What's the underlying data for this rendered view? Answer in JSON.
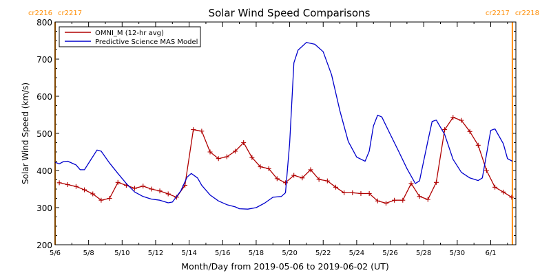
{
  "chart_data": {
    "type": "line",
    "title": "Solar Wind Speed Comparisons",
    "xlabel": "Month/Day from 2019-05-06 to 2019-06-02 (UT)",
    "ylabel": "Solar Wind Speed (km/s)",
    "xlim": [
      "2019-05-06T00:00",
      "2019-06-02T12:00"
    ],
    "ylim": [
      200,
      800
    ],
    "x_ticks": [
      "5/6",
      "5/8",
      "5/10",
      "5/12",
      "5/14",
      "5/16",
      "5/18",
      "5/20",
      "5/22",
      "5/24",
      "5/26",
      "5/28",
      "5/30",
      "6/1"
    ],
    "y_ticks": [
      200,
      300,
      400,
      500,
      600,
      700,
      800
    ],
    "legend": {
      "placement": "top-left"
    },
    "rotation_markers": [
      {
        "x": "2019-05-06T00:00",
        "label_left": "cr2216",
        "label_right": "cr2217",
        "color": "#ff8c00"
      },
      {
        "x": "2019-06-02T07:00",
        "label_left": "cr2217",
        "label_right": "cr2218",
        "color": "#ff8c00"
      }
    ],
    "series": [
      {
        "name": "OMNI_M (12-hr avg)",
        "color": "#b00000",
        "marker": "plus",
        "points": [
          [
            "2019-05-06T06:00",
            367
          ],
          [
            "2019-05-06T18:00",
            362
          ],
          [
            "2019-05-07T06:00",
            357
          ],
          [
            "2019-05-07T18:00",
            348
          ],
          [
            "2019-05-08T06:00",
            337
          ],
          [
            "2019-05-08T18:00",
            320
          ],
          [
            "2019-05-09T06:00",
            325
          ],
          [
            "2019-05-09T18:00",
            368
          ],
          [
            "2019-05-10T06:00",
            360
          ],
          [
            "2019-05-10T18:00",
            352
          ],
          [
            "2019-05-11T06:00",
            358
          ],
          [
            "2019-05-11T18:00",
            350
          ],
          [
            "2019-05-12T06:00",
            345
          ],
          [
            "2019-05-12T18:00",
            337
          ],
          [
            "2019-05-13T06:00",
            328
          ],
          [
            "2019-05-13T18:00",
            360
          ],
          [
            "2019-05-14T06:00",
            510
          ],
          [
            "2019-05-14T18:00",
            506
          ],
          [
            "2019-05-15T06:00",
            450
          ],
          [
            "2019-05-15T18:00",
            432
          ],
          [
            "2019-05-16T06:00",
            437
          ],
          [
            "2019-05-16T18:00",
            452
          ],
          [
            "2019-05-17T06:00",
            475
          ],
          [
            "2019-05-17T18:00",
            435
          ],
          [
            "2019-05-18T06:00",
            410
          ],
          [
            "2019-05-18T18:00",
            405
          ],
          [
            "2019-05-19T06:00",
            378
          ],
          [
            "2019-05-19T18:00",
            367
          ],
          [
            "2019-05-20T06:00",
            387
          ],
          [
            "2019-05-20T18:00",
            380
          ],
          [
            "2019-05-21T06:00",
            402
          ],
          [
            "2019-05-21T18:00",
            376
          ],
          [
            "2019-05-22T06:00",
            372
          ],
          [
            "2019-05-22T18:00",
            355
          ],
          [
            "2019-05-23T06:00",
            340
          ],
          [
            "2019-05-23T18:00",
            340
          ],
          [
            "2019-05-24T06:00",
            338
          ],
          [
            "2019-05-24T18:00",
            338
          ],
          [
            "2019-05-25T06:00",
            318
          ],
          [
            "2019-05-25T18:00",
            312
          ],
          [
            "2019-05-26T06:00",
            320
          ],
          [
            "2019-05-26T18:00",
            320
          ],
          [
            "2019-05-27T06:00",
            365
          ],
          [
            "2019-05-27T18:00",
            330
          ],
          [
            "2019-05-28T06:00",
            322
          ],
          [
            "2019-05-28T18:00",
            368
          ],
          [
            "2019-05-29T06:00",
            510
          ],
          [
            "2019-05-29T18:00",
            543
          ],
          [
            "2019-05-30T06:00",
            535
          ],
          [
            "2019-05-30T18:00",
            505
          ],
          [
            "2019-05-31T06:00",
            468
          ],
          [
            "2019-05-31T18:00",
            400
          ],
          [
            "2019-06-01T06:00",
            355
          ],
          [
            "2019-06-01T18:00",
            342
          ],
          [
            "2019-06-02T06:00",
            328
          ]
        ]
      },
      {
        "name": "Predictive Science MAS Model",
        "color": "#0000cc",
        "marker": "none",
        "points": [
          [
            "2019-05-06T00:00",
            422
          ],
          [
            "2019-05-06T06:00",
            418
          ],
          [
            "2019-05-06T12:00",
            424
          ],
          [
            "2019-05-06T18:00",
            425
          ],
          [
            "2019-05-07T06:00",
            415
          ],
          [
            "2019-05-07T12:00",
            402
          ],
          [
            "2019-05-07T18:00",
            402
          ],
          [
            "2019-05-08T12:00",
            455
          ],
          [
            "2019-05-08T18:00",
            452
          ],
          [
            "2019-05-09T06:00",
            420
          ],
          [
            "2019-05-09T18:00",
            392
          ],
          [
            "2019-05-10T06:00",
            365
          ],
          [
            "2019-05-10T18:00",
            342
          ],
          [
            "2019-05-11T06:00",
            330
          ],
          [
            "2019-05-11T18:00",
            323
          ],
          [
            "2019-05-12T06:00",
            320
          ],
          [
            "2019-05-12T18:00",
            313
          ],
          [
            "2019-05-13T00:00",
            315
          ],
          [
            "2019-05-13T12:00",
            345
          ],
          [
            "2019-05-13T21:00",
            382
          ],
          [
            "2019-05-14T03:00",
            392
          ],
          [
            "2019-05-14T12:00",
            380
          ],
          [
            "2019-05-14T18:00",
            360
          ],
          [
            "2019-05-15T06:00",
            334
          ],
          [
            "2019-05-15T18:00",
            318
          ],
          [
            "2019-05-16T06:00",
            308
          ],
          [
            "2019-05-16T18:00",
            302
          ],
          [
            "2019-05-17T00:00",
            297
          ],
          [
            "2019-05-17T12:00",
            296
          ],
          [
            "2019-05-18T00:00",
            300
          ],
          [
            "2019-05-18T12:00",
            312
          ],
          [
            "2019-05-19T00:00",
            328
          ],
          [
            "2019-05-19T12:00",
            330
          ],
          [
            "2019-05-19T18:00",
            340
          ],
          [
            "2019-05-20T00:00",
            475
          ],
          [
            "2019-05-20T06:00",
            690
          ],
          [
            "2019-05-20T12:00",
            724
          ],
          [
            "2019-05-21T00:00",
            745
          ],
          [
            "2019-05-21T12:00",
            740
          ],
          [
            "2019-05-22T00:00",
            720
          ],
          [
            "2019-05-22T12:00",
            658
          ],
          [
            "2019-05-23T00:00",
            560
          ],
          [
            "2019-05-23T12:00",
            478
          ],
          [
            "2019-05-24T00:00",
            436
          ],
          [
            "2019-05-24T12:00",
            425
          ],
          [
            "2019-05-24T18:00",
            452
          ],
          [
            "2019-05-25T00:00",
            520
          ],
          [
            "2019-05-25T06:00",
            549
          ],
          [
            "2019-05-25T12:00",
            544
          ],
          [
            "2019-05-26T00:00",
            498
          ],
          [
            "2019-05-26T12:00",
            452
          ],
          [
            "2019-05-27T00:00",
            405
          ],
          [
            "2019-05-27T12:00",
            365
          ],
          [
            "2019-05-27T18:00",
            372
          ],
          [
            "2019-05-28T06:00",
            480
          ],
          [
            "2019-05-28T12:00",
            532
          ],
          [
            "2019-05-28T18:00",
            536
          ],
          [
            "2019-05-29T06:00",
            497
          ],
          [
            "2019-05-29T18:00",
            430
          ],
          [
            "2019-05-30T06:00",
            395
          ],
          [
            "2019-05-30T18:00",
            380
          ],
          [
            "2019-05-31T06:00",
            373
          ],
          [
            "2019-05-31T12:00",
            380
          ],
          [
            "2019-06-01T00:00",
            508
          ],
          [
            "2019-06-01T06:00",
            512
          ],
          [
            "2019-06-01T18:00",
            472
          ],
          [
            "2019-06-02T00:00",
            432
          ],
          [
            "2019-06-02T07:00",
            425
          ]
        ]
      }
    ]
  }
}
